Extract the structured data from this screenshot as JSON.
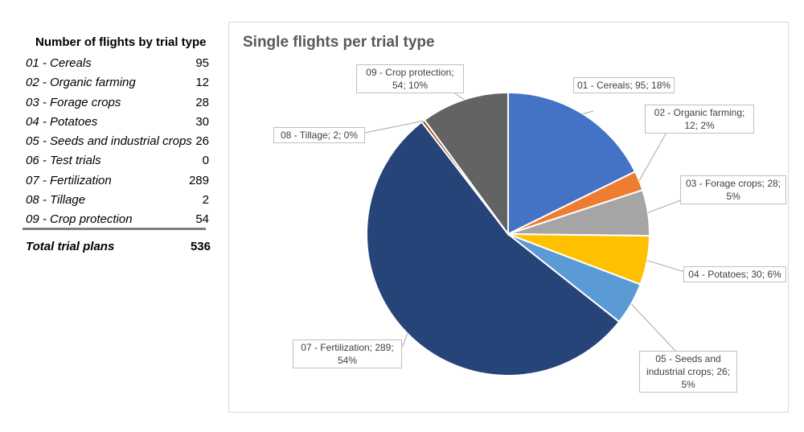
{
  "table": {
    "title": "Number of flights by trial type",
    "rows": [
      {
        "label": "01 - Cereals",
        "value": "95"
      },
      {
        "label": "02 - Organic farming",
        "value": "12"
      },
      {
        "label": "03 - Forage crops",
        "value": "28"
      },
      {
        "label": "04 - Potatoes",
        "value": "30"
      },
      {
        "label": "05 - Seeds and industrial crops",
        "value": "26"
      },
      {
        "label": "06 - Test trials",
        "value": "0"
      },
      {
        "label": "07 - Fertilization",
        "value": "289"
      },
      {
        "label": "08 - Tillage",
        "value": "2"
      },
      {
        "label": "09 - Crop protection",
        "value": "54"
      }
    ],
    "total_label": "Total trial plans",
    "total_value": "536"
  },
  "chart_data": {
    "type": "pie",
    "title": "Single flights per trial type",
    "slices": [
      {
        "name": "01 - Cereals",
        "value": 95,
        "percent": "18%",
        "color": "#4472C4",
        "label": "01 - Cereals; 95; 18%"
      },
      {
        "name": "02 - Organic farming",
        "value": 12,
        "percent": "2%",
        "color": "#ED7D31",
        "label": "02 - Organic farming; 12; 2%"
      },
      {
        "name": "03 - Forage crops",
        "value": 28,
        "percent": "5%",
        "color": "#A5A5A5",
        "label": "03 - Forage crops; 28; 5%"
      },
      {
        "name": "04 - Potatoes",
        "value": 30,
        "percent": "6%",
        "color": "#FFC000",
        "label": "04 - Potatoes; 30; 6%"
      },
      {
        "name": "05 - Seeds and industrial crops",
        "value": 26,
        "percent": "5%",
        "color": "#5B9BD5",
        "label": "05 - Seeds and industrial crops; 26; 5%"
      },
      {
        "name": "06 - Test trials",
        "value": 0,
        "percent": "0%",
        "color": "#70AD47",
        "label": ""
      },
      {
        "name": "07 - Fertilization",
        "value": 289,
        "percent": "54%",
        "color": "#264478",
        "label": "07 - Fertilization; 289; 54%"
      },
      {
        "name": "08 - Tillage",
        "value": 2,
        "percent": "0%",
        "color": "#9E480E",
        "label": "08 - Tillage; 2; 0%"
      },
      {
        "name": "09 - Crop protection",
        "value": 54,
        "percent": "10%",
        "color": "#636363",
        "label": "09 - Crop protection; 54; 10%"
      }
    ]
  }
}
